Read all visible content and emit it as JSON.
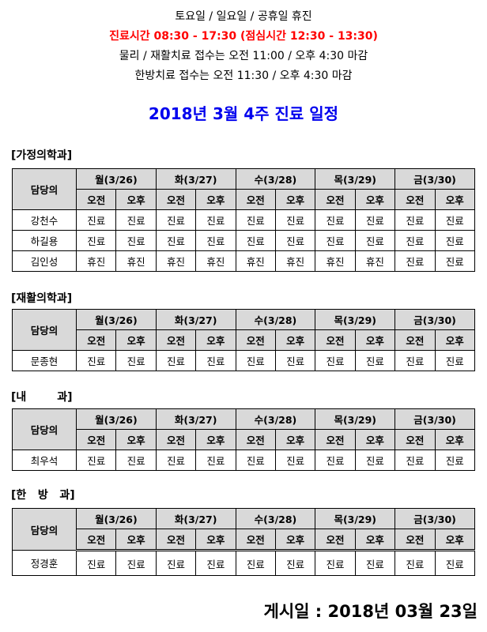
{
  "notices": {
    "line1": "토요일 / 일요일 / 공휴일 휴진",
    "line2": "진료시간 08:30 - 17:30 (점심시간 12:30 - 13:30)",
    "line3": "물리 /  재활치료 접수는 오전 11:00 / 오후 4:30 마감",
    "line4": "한방치료 접수는 오전 11:30 / 오후 4:30 마감"
  },
  "title": "2018년 3월 4주 진료 일정",
  "header": {
    "doctor": "담당의",
    "days": [
      "월(3/26)",
      "화(3/27)",
      "수(3/28)",
      "목(3/29)",
      "금(3/30)"
    ],
    "am": "오전",
    "pm": "오후"
  },
  "departments": [
    {
      "name": "[가정의학과]",
      "rows": [
        {
          "doctor": "강천수",
          "slots": [
            "진료",
            "진료",
            "진료",
            "진료",
            "진료",
            "진료",
            "진료",
            "진료",
            "진료",
            "진료"
          ]
        },
        {
          "doctor": "하길용",
          "slots": [
            "진료",
            "진료",
            "진료",
            "진료",
            "진료",
            "진료",
            "진료",
            "진료",
            "진료",
            "진료"
          ]
        },
        {
          "doctor": "김인성",
          "slots": [
            "휴진",
            "휴진",
            "휴진",
            "휴진",
            "휴진",
            "휴진",
            "휴진",
            "휴진",
            "진료",
            "진료"
          ]
        }
      ]
    },
    {
      "name": "[재활의학과]",
      "rows": [
        {
          "doctor": "문종현",
          "slots": [
            "진료",
            "진료",
            "진료",
            "진료",
            "진료",
            "진료",
            "진료",
            "진료",
            "진료",
            "진료"
          ]
        }
      ]
    },
    {
      "name": "[내        과]",
      "rows": [
        {
          "doctor": "최우석",
          "slots": [
            "진료",
            "진료",
            "진료",
            "진료",
            "진료",
            "진료",
            "진료",
            "진료",
            "진료",
            "진료"
          ]
        }
      ]
    },
    {
      "name": "[한   방   과]",
      "rows": [
        {
          "doctor": "정경훈",
          "slots": [
            "진료",
            "진료",
            "진료",
            "진료",
            "진료",
            "진료",
            "진료",
            "진료",
            "진료",
            "진료"
          ]
        }
      ]
    }
  ],
  "posted": "게시일 : 2018년 03월 23일"
}
